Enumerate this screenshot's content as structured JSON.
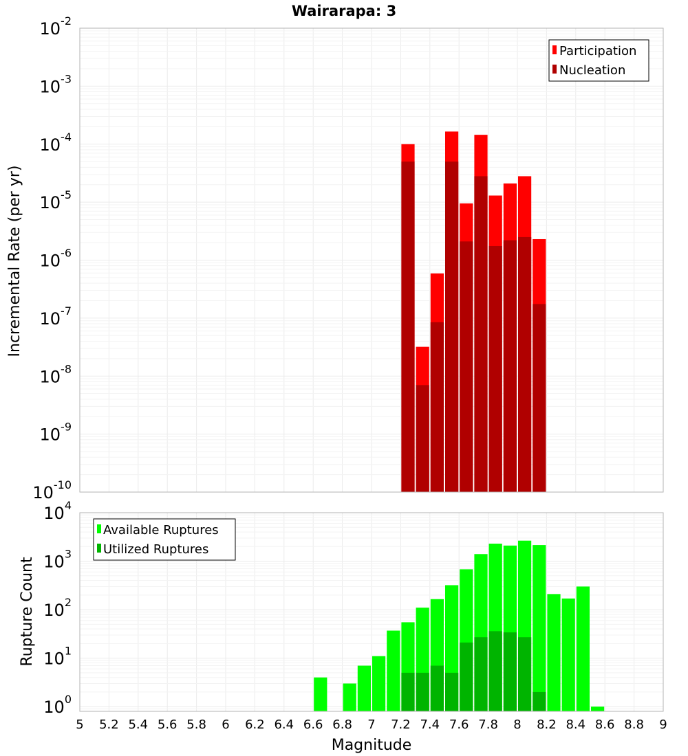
{
  "title": "Wairarapa: 3",
  "chart_data": [
    {
      "type": "bar",
      "ylabel": "Incremental Rate (per yr)",
      "y_scale": "log",
      "ylim": [
        1e-10,
        0.01
      ],
      "y_tick_exponents": [
        "-10",
        "-9",
        "-8",
        "-7",
        "-6",
        "-5",
        "-4",
        "-3",
        "-2"
      ],
      "xlim": [
        5,
        9
      ],
      "grid": true,
      "legend_position": "top-right",
      "x": [
        7.25,
        7.35,
        7.45,
        7.55,
        7.65,
        7.75,
        7.85,
        7.95,
        8.05,
        8.15
      ],
      "series": [
        {
          "name": "Participation",
          "color": "#ff0000",
          "values": [
            0.0001,
            3.2e-08,
            5.9e-07,
            0.000165,
            9.5e-06,
            0.000145,
            1.3e-05,
            2.1e-05,
            2.8e-05,
            2.3e-06
          ]
        },
        {
          "name": "Nucleation",
          "color": "#b00000",
          "values": [
            5e-05,
            7e-09,
            8.5e-08,
            5e-05,
            2.1e-06,
            2.8e-05,
            1.75e-06,
            2.2e-06,
            2.5e-06,
            1.75e-07
          ]
        }
      ]
    },
    {
      "type": "bar",
      "xlabel": "Magnitude",
      "ylabel": "Rupture Count",
      "y_scale": "log",
      "ylim": [
        0.8,
        10000
      ],
      "y_tick_exponents": [
        "0",
        "1",
        "2",
        "3",
        "4"
      ],
      "xlim": [
        5,
        9
      ],
      "x_ticks": [
        "5",
        "5.2",
        "5.4",
        "5.6",
        "5.8",
        "6",
        "6.2",
        "6.4",
        "6.6",
        "6.8",
        "7",
        "7.2",
        "7.4",
        "7.6",
        "7.8",
        "8",
        "8.2",
        "8.4",
        "8.6",
        "8.8",
        "9"
      ],
      "grid": true,
      "legend_position": "top-left",
      "series": [
        {
          "name": "Available Ruptures",
          "color": "#00ff00",
          "x": [
            6.65,
            6.85,
            6.95,
            7.05,
            7.15,
            7.25,
            7.35,
            7.45,
            7.55,
            7.65,
            7.75,
            7.85,
            7.95,
            8.05,
            8.15,
            8.25,
            8.35,
            8.45,
            8.55
          ],
          "values": [
            4,
            3,
            7,
            11,
            37,
            55,
            110,
            165,
            320,
            680,
            1400,
            2300,
            2100,
            2650,
            2150,
            210,
            170,
            300,
            1
          ]
        },
        {
          "name": "Utilized Ruptures",
          "color": "#00b400",
          "x": [
            7.25,
            7.35,
            7.45,
            7.55,
            7.65,
            7.75,
            7.85,
            7.95,
            8.05,
            8.15
          ],
          "values": [
            5,
            5,
            7,
            5,
            21,
            27,
            36,
            34,
            27,
            2
          ]
        }
      ]
    }
  ]
}
